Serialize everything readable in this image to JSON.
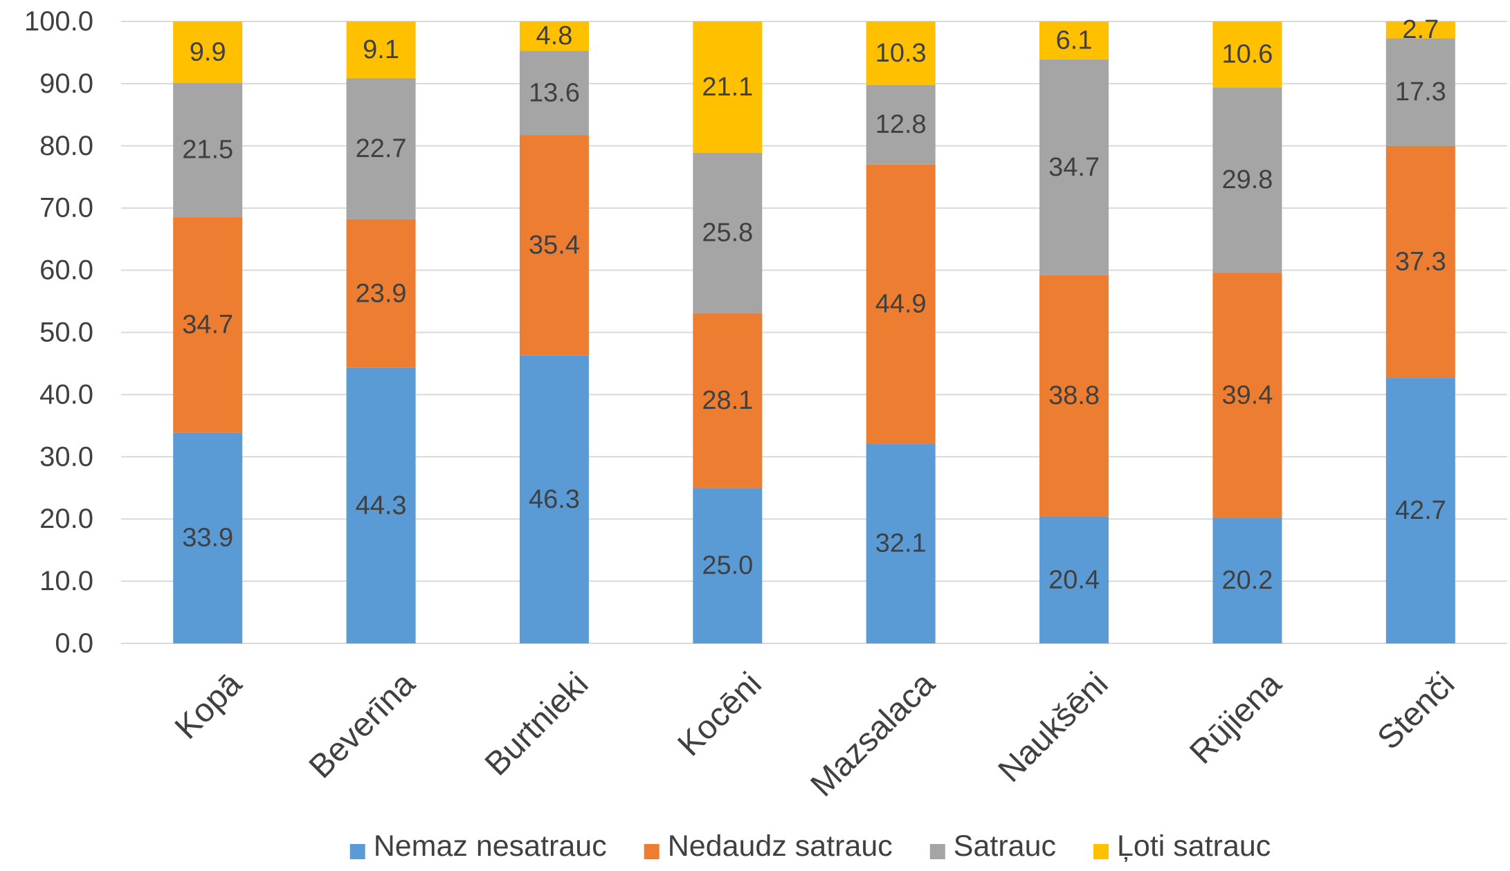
{
  "chart_data": {
    "type": "bar",
    "stacked": true,
    "categories": [
      "Kopā",
      "Beverīna",
      "Burtnieki",
      "Kocēni",
      "Mazsalaca",
      "Naukšēni",
      "Rūjiena",
      "Stenči"
    ],
    "series": [
      {
        "name": "Nemaz nesatrauc",
        "color": "#5b9bd5",
        "values": [
          33.9,
          44.3,
          46.3,
          25.0,
          32.1,
          20.4,
          20.2,
          42.7
        ]
      },
      {
        "name": "Nedaudz satrauc",
        "color": "#ed7d31",
        "values": [
          34.7,
          23.9,
          35.4,
          28.1,
          44.9,
          38.8,
          39.4,
          37.3
        ]
      },
      {
        "name": "Satrauc",
        "color": "#a5a5a5",
        "values": [
          21.5,
          22.7,
          13.6,
          25.8,
          12.8,
          34.7,
          29.8,
          17.3
        ]
      },
      {
        "name": "Ļoti satrauc",
        "color": "#ffc000",
        "values": [
          9.9,
          9.1,
          4.8,
          21.1,
          10.3,
          6.1,
          10.6,
          2.7
        ]
      }
    ],
    "title": "",
    "xlabel": "",
    "ylabel": "",
    "ylim": [
      0,
      100
    ],
    "yticks": [
      "0.0",
      "10.0",
      "20.0",
      "30.0",
      "40.0",
      "50.0",
      "60.0",
      "70.0",
      "80.0",
      "90.0",
      "100.0"
    ],
    "grid": true,
    "legend": "bottom",
    "data_labels": true
  }
}
